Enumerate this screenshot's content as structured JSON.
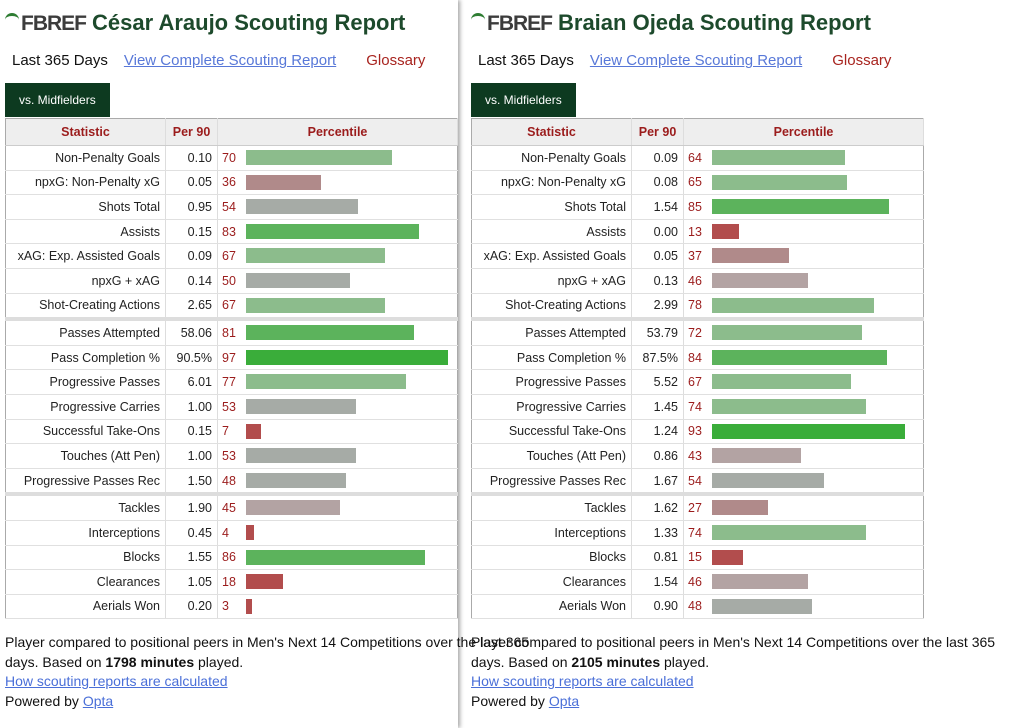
{
  "panels": [
    {
      "logo": "FBREF",
      "title": "César Araujo Scouting Report",
      "period": "Last 365 Days",
      "report_link": "View Complete Scouting Report",
      "glossary": "Glossary",
      "tab": "vs. Midfielders",
      "headers": [
        "Statistic",
        "Per 90",
        "Percentile"
      ],
      "groups": [
        [
          {
            "stat": "Non-Penalty Goals",
            "per90": "0.10",
            "percentile": 70
          },
          {
            "stat": "npxG: Non-Penalty xG",
            "per90": "0.05",
            "percentile": 36
          },
          {
            "stat": "Shots Total",
            "per90": "0.95",
            "percentile": 54
          },
          {
            "stat": "Assists",
            "per90": "0.15",
            "percentile": 83
          },
          {
            "stat": "xAG: Exp. Assisted Goals",
            "per90": "0.09",
            "percentile": 67
          },
          {
            "stat": "npxG + xAG",
            "per90": "0.14",
            "percentile": 50
          },
          {
            "stat": "Shot-Creating Actions",
            "per90": "2.65",
            "percentile": 67
          }
        ],
        [
          {
            "stat": "Passes Attempted",
            "per90": "58.06",
            "percentile": 81
          },
          {
            "stat": "Pass Completion %",
            "per90": "90.5%",
            "percentile": 97
          },
          {
            "stat": "Progressive Passes",
            "per90": "6.01",
            "percentile": 77
          },
          {
            "stat": "Progressive Carries",
            "per90": "1.00",
            "percentile": 53
          },
          {
            "stat": "Successful Take-Ons",
            "per90": "0.15",
            "percentile": 7
          },
          {
            "stat": "Touches (Att Pen)",
            "per90": "1.00",
            "percentile": 53
          },
          {
            "stat": "Progressive Passes Rec",
            "per90": "1.50",
            "percentile": 48
          }
        ],
        [
          {
            "stat": "Tackles",
            "per90": "1.90",
            "percentile": 45
          },
          {
            "stat": "Interceptions",
            "per90": "0.45",
            "percentile": 4
          },
          {
            "stat": "Blocks",
            "per90": "1.55",
            "percentile": 86
          },
          {
            "stat": "Clearances",
            "per90": "1.05",
            "percentile": 18
          },
          {
            "stat": "Aerials Won",
            "per90": "0.20",
            "percentile": 3
          }
        ]
      ],
      "footer": {
        "text": "Player compared to positional peers in Men's Next 14 Competitions over the last 365 days. Based on",
        "minutes": "1798 minutes",
        "text_end": "played.",
        "method_link": "How scouting reports are calculated",
        "powered": "Powered by",
        "provider": "Opta"
      }
    },
    {
      "logo": "FBREF",
      "title": "Braian Ojeda Scouting Report",
      "period": "Last 365 Days",
      "report_link": "View Complete Scouting Report",
      "glossary": "Glossary",
      "tab": "vs. Midfielders",
      "headers": [
        "Statistic",
        "Per 90",
        "Percentile"
      ],
      "groups": [
        [
          {
            "stat": "Non-Penalty Goals",
            "per90": "0.09",
            "percentile": 64
          },
          {
            "stat": "npxG: Non-Penalty xG",
            "per90": "0.08",
            "percentile": 65
          },
          {
            "stat": "Shots Total",
            "per90": "1.54",
            "percentile": 85
          },
          {
            "stat": "Assists",
            "per90": "0.00",
            "percentile": 13
          },
          {
            "stat": "xAG: Exp. Assisted Goals",
            "per90": "0.05",
            "percentile": 37
          },
          {
            "stat": "npxG + xAG",
            "per90": "0.13",
            "percentile": 46
          },
          {
            "stat": "Shot-Creating Actions",
            "per90": "2.99",
            "percentile": 78
          }
        ],
        [
          {
            "stat": "Passes Attempted",
            "per90": "53.79",
            "percentile": 72
          },
          {
            "stat": "Pass Completion %",
            "per90": "87.5%",
            "percentile": 84
          },
          {
            "stat": "Progressive Passes",
            "per90": "5.52",
            "percentile": 67
          },
          {
            "stat": "Progressive Carries",
            "per90": "1.45",
            "percentile": 74
          },
          {
            "stat": "Successful Take-Ons",
            "per90": "1.24",
            "percentile": 93
          },
          {
            "stat": "Touches (Att Pen)",
            "per90": "0.86",
            "percentile": 43
          },
          {
            "stat": "Progressive Passes Rec",
            "per90": "1.67",
            "percentile": 54
          }
        ],
        [
          {
            "stat": "Tackles",
            "per90": "1.62",
            "percentile": 27
          },
          {
            "stat": "Interceptions",
            "per90": "1.33",
            "percentile": 74
          },
          {
            "stat": "Blocks",
            "per90": "0.81",
            "percentile": 15
          },
          {
            "stat": "Clearances",
            "per90": "1.54",
            "percentile": 46
          },
          {
            "stat": "Aerials Won",
            "per90": "0.90",
            "percentile": 48
          }
        ]
      ],
      "footer": {
        "text": "Player compared to positional peers in Men's Next 14 Competitions over the last 365 days. Based on",
        "minutes": "2105 minutes",
        "text_end": "played.",
        "method_link": "How scouting reports are calculated",
        "powered": "Powered by",
        "provider": "Opta"
      }
    }
  ]
}
